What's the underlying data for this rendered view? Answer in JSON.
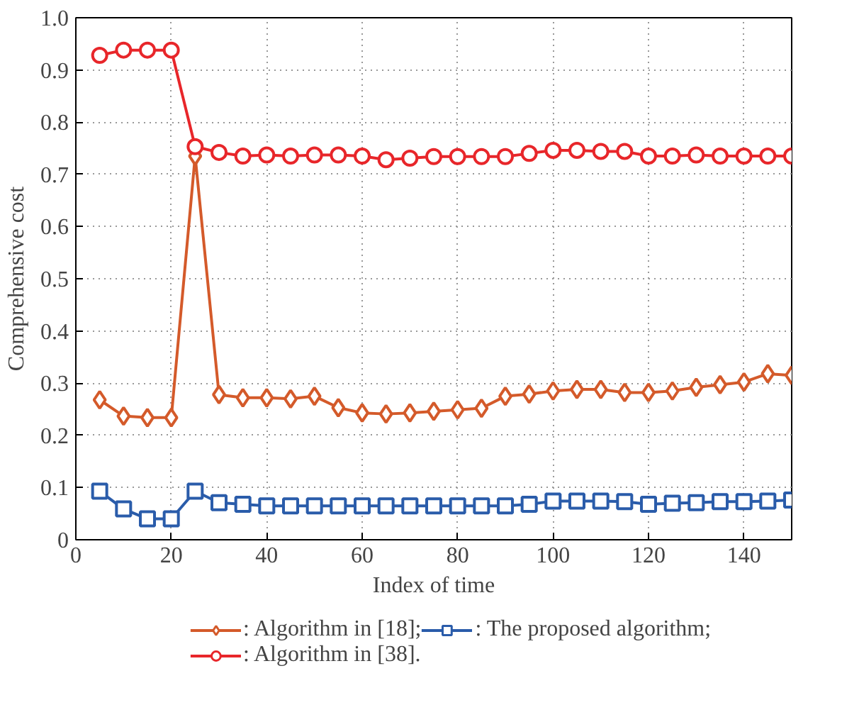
{
  "chart_data": {
    "type": "line",
    "xlabel": "Index of time",
    "ylabel": "Comprehensive cost",
    "x": [
      5,
      10,
      15,
      20,
      25,
      30,
      35,
      40,
      45,
      50,
      55,
      60,
      65,
      70,
      75,
      80,
      85,
      90,
      95,
      100,
      105,
      110,
      115,
      120,
      125,
      130,
      135,
      140,
      145,
      150
    ],
    "series": [
      {
        "name": ": Algorithm in [18];",
        "color": "#d45a2a",
        "marker": "diamond",
        "values": [
          0.268,
          0.237,
          0.234,
          0.234,
          0.735,
          0.278,
          0.272,
          0.272,
          0.27,
          0.275,
          0.253,
          0.243,
          0.241,
          0.243,
          0.246,
          0.249,
          0.252,
          0.275,
          0.279,
          0.285,
          0.288,
          0.288,
          0.282,
          0.282,
          0.285,
          0.292,
          0.297,
          0.302,
          0.318,
          0.315
        ]
      },
      {
        "name": ": Algorithm in [38].",
        "color": "#e8262a",
        "marker": "circle",
        "values": [
          0.928,
          0.938,
          0.938,
          0.938,
          0.753,
          0.742,
          0.735,
          0.737,
          0.735,
          0.737,
          0.737,
          0.735,
          0.728,
          0.731,
          0.734,
          0.734,
          0.734,
          0.734,
          0.74,
          0.746,
          0.746,
          0.744,
          0.744,
          0.735,
          0.735,
          0.737,
          0.735,
          0.735,
          0.735,
          0.735
        ]
      },
      {
        "name": ": The proposed algorithm;",
        "color": "#2a5caa",
        "marker": "square",
        "values": [
          0.093,
          0.059,
          0.04,
          0.04,
          0.093,
          0.071,
          0.068,
          0.065,
          0.065,
          0.065,
          0.065,
          0.065,
          0.065,
          0.065,
          0.065,
          0.065,
          0.065,
          0.065,
          0.068,
          0.074,
          0.074,
          0.074,
          0.073,
          0.068,
          0.07,
          0.071,
          0.073,
          0.073,
          0.074,
          0.076
        ]
      }
    ],
    "xlim": [
      0,
      150
    ],
    "xticks": [
      0,
      20,
      40,
      60,
      80,
      100,
      120,
      140
    ],
    "ylim": [
      0,
      1.0
    ],
    "yticks": [
      0,
      0.1,
      0.2,
      0.3,
      0.4,
      0.5,
      0.6,
      0.7,
      0.8,
      0.9,
      {
        "value": 1.0,
        "label": "1.0"
      }
    ],
    "grid": true,
    "legend": "bottom",
    "line_style": "solid"
  }
}
